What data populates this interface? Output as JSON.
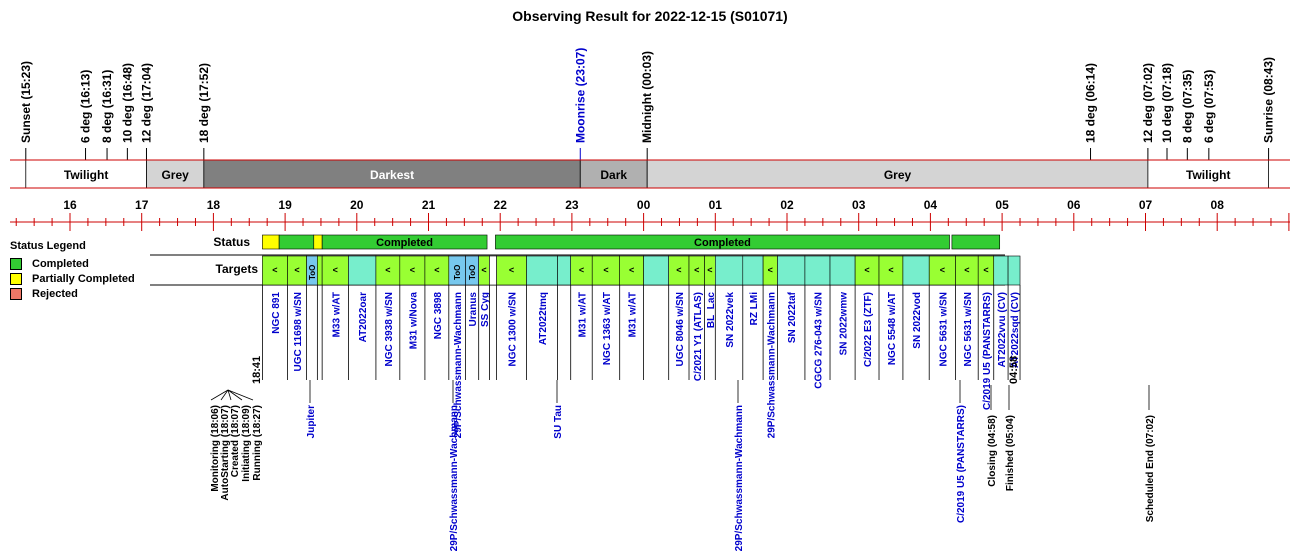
{
  "title": "Observing Result for 2022-12-15 (S01071)",
  "colors": {
    "completed": "#33cc33",
    "partial": "#ffff00",
    "rejected": "#ee7766",
    "target": "#99ff33",
    "too": "#77c8ee",
    "calib": "#77eecc",
    "darkest": "#808080",
    "dark": "#b0b0b0",
    "grey": "#d4d4d4",
    "redline": "#cc0000",
    "blue": "#0000cc"
  },
  "legend": {
    "title": "Status Legend",
    "items": [
      {
        "label": "Completed",
        "color": "#33cc33"
      },
      {
        "label": "Partially Completed",
        "color": "#ffff00"
      },
      {
        "label": "Rejected",
        "color": "#ee7766"
      }
    ]
  },
  "row_labels": {
    "status": "Status",
    "targets": "Targets"
  },
  "sky_events": [
    {
      "label": "Sunset (15:23)",
      "t": "15:23",
      "color": "black"
    },
    {
      "label": "6 deg (16:13)",
      "t": "16:13",
      "color": "black"
    },
    {
      "label": "8 deg (16:31)",
      "t": "16:31",
      "color": "black"
    },
    {
      "label": "10 deg (16:48)",
      "t": "16:48",
      "color": "black"
    },
    {
      "label": "12 deg (17:04)",
      "t": "17:04",
      "color": "black"
    },
    {
      "label": "18 deg (17:52)",
      "t": "17:52",
      "color": "black"
    },
    {
      "label": "Moonrise (23:07)",
      "t": "23:07",
      "color": "blue"
    },
    {
      "label": "Midnight (00:03)",
      "t": "00:03",
      "color": "black"
    },
    {
      "label": "18 deg (06:14)",
      "t": "06:14",
      "color": "black"
    },
    {
      "label": "12 deg (07:02)",
      "t": "07:02",
      "color": "black"
    },
    {
      "label": "10 deg (07:18)",
      "t": "07:18",
      "color": "black"
    },
    {
      "label": "8 deg (07:35)",
      "t": "07:35",
      "color": "black"
    },
    {
      "label": "6 deg (07:53)",
      "t": "07:53",
      "color": "black"
    },
    {
      "label": "Sunrise (08:43)",
      "t": "08:43",
      "color": "black"
    }
  ],
  "sky_bands": [
    {
      "label": "Twilight",
      "start": "15:23",
      "end": "17:04",
      "fill": "#ffffff",
      "text": "#000000"
    },
    {
      "label": "Grey",
      "start": "17:04",
      "end": "17:52",
      "fill": "#d4d4d4",
      "text": "#000000"
    },
    {
      "label": "Darkest",
      "start": "17:52",
      "end": "23:07",
      "fill": "#808080",
      "text": "#ffffff"
    },
    {
      "label": "Dark",
      "start": "23:07",
      "end": "00:03",
      "fill": "#b0b0b0",
      "text": "#000000"
    },
    {
      "label": "Grey",
      "start": "00:03",
      "end": "07:02",
      "fill": "#d4d4d4",
      "text": "#000000"
    },
    {
      "label": "Twilight",
      "start": "07:02",
      "end": "08:43",
      "fill": "#ffffff",
      "text": "#000000"
    }
  ],
  "hour_labels": [
    "16",
    "17",
    "18",
    "19",
    "20",
    "21",
    "22",
    "23",
    "00",
    "01",
    "02",
    "03",
    "04",
    "05",
    "06",
    "07",
    "08"
  ],
  "status_blocks": [
    {
      "start": "18:41",
      "end": "18:55",
      "status": "partial",
      "label": ""
    },
    {
      "start": "18:55",
      "end": "19:24",
      "status": "completed",
      "label": ""
    },
    {
      "start": "19:24",
      "end": "19:31",
      "status": "partial",
      "label": ""
    },
    {
      "start": "19:31",
      "end": "21:49",
      "status": "completed",
      "label": "Completed"
    },
    {
      "start": "21:56",
      "end": "04:16",
      "status": "completed",
      "label": "Completed"
    },
    {
      "start": "04:18",
      "end": "04:58",
      "status": "completed",
      "label": ""
    }
  ],
  "targets": [
    {
      "start": "18:41",
      "end": "19:02",
      "kind": "target",
      "label": "NGC 891",
      "mark": "<"
    },
    {
      "start": "19:02",
      "end": "19:18",
      "kind": "target",
      "label": "UGC 11698 w/SN",
      "mark": "<"
    },
    {
      "start": "19:18",
      "end": "19:27",
      "kind": "too",
      "label": "",
      "mark": "ToO"
    },
    {
      "start": "19:27",
      "end": "19:31",
      "kind": "target",
      "label": "",
      "mark": ""
    },
    {
      "start": "19:31",
      "end": "19:53",
      "kind": "target",
      "label": "M33 w/AT",
      "mark": "<"
    },
    {
      "start": "19:53",
      "end": "20:16",
      "kind": "calib",
      "label": "AT2022oar",
      "mark": ""
    },
    {
      "start": "20:16",
      "end": "20:36",
      "kind": "target",
      "label": "NGC 3938 w/SN",
      "mark": "<"
    },
    {
      "start": "20:36",
      "end": "20:57",
      "kind": "target",
      "label": "M31 w/Nova",
      "mark": "<"
    },
    {
      "start": "20:57",
      "end": "21:17",
      "kind": "target",
      "label": "NGC 3898",
      "mark": "<"
    },
    {
      "start": "21:17",
      "end": "21:31",
      "kind": "too",
      "label": "29P/Schwassmann-Wachmann",
      "mark": "ToO"
    },
    {
      "start": "21:31",
      "end": "21:42",
      "kind": "too",
      "label": "Uranus",
      "mark": "ToO"
    },
    {
      "start": "21:42",
      "end": "21:51",
      "kind": "target",
      "label": "SS Cyg",
      "mark": "<"
    },
    {
      "start": "21:51",
      "end": "21:57",
      "kind": "blank",
      "label": "",
      "mark": ""
    },
    {
      "start": "21:57",
      "end": "22:22",
      "kind": "target",
      "label": "NGC 1300 w/SN",
      "mark": "<"
    },
    {
      "start": "22:22",
      "end": "22:48",
      "kind": "calib",
      "label": "AT2022tmq",
      "mark": ""
    },
    {
      "start": "22:48",
      "end": "22:59",
      "kind": "calib",
      "label": "",
      "mark": ""
    },
    {
      "start": "22:59",
      "end": "23:17",
      "kind": "target",
      "label": "M31 w/AT",
      "mark": "<"
    },
    {
      "start": "23:17",
      "end": "23:40",
      "kind": "target",
      "label": "NGC 1363 w/AT",
      "mark": "<"
    },
    {
      "start": "23:40",
      "end": "00:00",
      "kind": "target",
      "label": "M31 w/AT",
      "mark": "<"
    },
    {
      "start": "00:00",
      "end": "00:21",
      "kind": "calib",
      "label": "",
      "mark": ""
    },
    {
      "start": "00:21",
      "end": "00:38",
      "kind": "target",
      "label": "UGC 8046 w/SN",
      "mark": "<"
    },
    {
      "start": "00:38",
      "end": "00:51",
      "kind": "target",
      "label": "C/2021 Y1 (ATLAS)",
      "mark": "<"
    },
    {
      "start": "00:51",
      "end": "01:00",
      "kind": "target",
      "label": "BL_Lac",
      "mark": "<"
    },
    {
      "start": "01:00",
      "end": "01:23",
      "kind": "calib",
      "label": "SN 2022vek",
      "mark": ""
    },
    {
      "start": "01:23",
      "end": "01:40",
      "kind": "calib",
      "label": "RZ LMi",
      "mark": ""
    },
    {
      "start": "01:40",
      "end": "01:52",
      "kind": "target",
      "label": "29P/Schwassmann-Wachmann",
      "mark": "<"
    },
    {
      "start": "01:52",
      "end": "02:15",
      "kind": "calib",
      "label": "SN 2022taf",
      "mark": ""
    },
    {
      "start": "02:15",
      "end": "02:36",
      "kind": "calib",
      "label": "CGCG 276-043 w/SN",
      "mark": ""
    },
    {
      "start": "02:36",
      "end": "02:57",
      "kind": "calib",
      "label": "SN 2022wmw",
      "mark": ""
    },
    {
      "start": "02:57",
      "end": "03:17",
      "kind": "target",
      "label": "C/2022 E3 (ZTF)",
      "mark": "<"
    },
    {
      "start": "03:17",
      "end": "03:37",
      "kind": "target",
      "label": "NGC 5548 w/AT",
      "mark": "<"
    },
    {
      "start": "03:37",
      "end": "03:59",
      "kind": "calib",
      "label": "SN 2022vod",
      "mark": ""
    },
    {
      "start": "03:59",
      "end": "04:21",
      "kind": "target",
      "label": "NGC 5631 w/SN",
      "mark": "<"
    },
    {
      "start": "04:21",
      "end": "04:40",
      "kind": "target",
      "label": "NGC 5631 w/SN",
      "mark": "<"
    },
    {
      "start": "04:40",
      "end": "04:53",
      "kind": "target",
      "label": "C/2019 U5 (PANSTARRS)",
      "mark": "<"
    },
    {
      "start": "04:53",
      "end": "05:05",
      "kind": "calib",
      "label": "AT2022vvu (CV)",
      "mark": ""
    },
    {
      "start": "05:05",
      "end": "05:15",
      "kind": "calib",
      "label": "AT2022sqd (CV)",
      "mark": ""
    }
  ],
  "extra_label_left": "18:41",
  "extra_label_right": "04:58",
  "bottom_events_left": [
    {
      "label": "Monitoring (18:06)",
      "x": 214
    },
    {
      "label": "AutoStarting (18:07)",
      "x": 224
    },
    {
      "label": "Created (18:07)",
      "x": 234
    },
    {
      "label": "Initiating (18:09)",
      "x": 245
    },
    {
      "label": "Running (18:27)",
      "x": 256
    }
  ],
  "bottom_events_blue": [
    {
      "label": "Jupiter",
      "x": 314
    },
    {
      "label": "29P/Schwassmann-Wachmann",
      "x": 457
    },
    {
      "label": "SU Tau",
      "x": 561
    },
    {
      "label": "29P/Schwassmann-Wachmann",
      "x": 742
    },
    {
      "label": "C/2019 U5 (PANSTARRS)",
      "x": 964
    }
  ],
  "bottom_events_right": [
    {
      "label": "Closing (04:58)",
      "x": 995
    },
    {
      "label": "Finished (05:04)",
      "x": 1013
    },
    {
      "label": "Scheduled End (07:02)",
      "x": 1153
    }
  ]
}
